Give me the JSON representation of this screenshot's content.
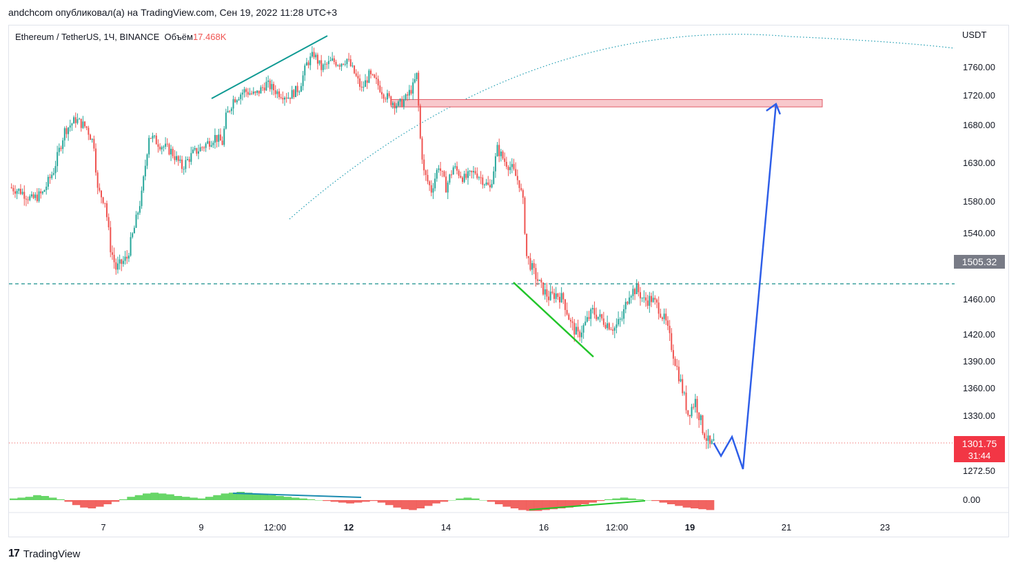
{
  "header": {
    "published_line": "andchcom опубликовал(а) на TradingView.com, Сен 19, 2022 11:28 UTC+3"
  },
  "legend": {
    "symbol": "Ethereum / TetherUS, 1Ч, BINANCE",
    "volume_label": "Объём",
    "volume_value": "17.468K"
  },
  "footer": {
    "brand": "TradingView",
    "logo_glyph": "17"
  },
  "colors": {
    "up": "#26a69a",
    "down": "#ef5350",
    "green_line": "#22c52a",
    "teal_line": "#0f9a93",
    "blue_arrow": "#2e5ee8",
    "zone_fill": "#f8c8cc",
    "zone_stroke": "#e05a66"
  },
  "chart_data": {
    "type": "candlestick",
    "symbol": "ETHUSDT",
    "interval": "1h",
    "quote_currency": "USDT",
    "y_axis": {
      "unit": "USDT",
      "ticks": [
        1760,
        1720,
        1680,
        1630,
        1580,
        1540,
        1460,
        1420,
        1390,
        1360,
        1330,
        1272.5
      ],
      "tick_labels": [
        "1760.00",
        "1720.00",
        "1680.00",
        "1630.00",
        "1580.00",
        "1540.00",
        "1460.00",
        "1420.00",
        "1390.00",
        "1360.00",
        "1330.00",
        "1272.50"
      ]
    },
    "x_axis": {
      "tick_labels": [
        "7",
        "9",
        "12:00",
        "12",
        "14",
        "16",
        "12:00",
        "19",
        "21",
        "23"
      ],
      "bold_labels": [
        "12",
        "19"
      ]
    },
    "last_price": {
      "label": "1301.75",
      "countdown": "31:44",
      "value": 1301.75
    },
    "marked_price": {
      "label": "1505.32",
      "value": 1505.32
    },
    "price_path": [
      [
        0,
        1598
      ],
      [
        6,
        1593
      ],
      [
        12,
        1582
      ],
      [
        18,
        1590
      ],
      [
        24,
        1620
      ],
      [
        30,
        1672
      ],
      [
        36,
        1687
      ],
      [
        42,
        1676
      ],
      [
        46,
        1654
      ],
      [
        48,
        1594
      ],
      [
        52,
        1580
      ],
      [
        55,
        1522
      ],
      [
        58,
        1497
      ],
      [
        64,
        1510
      ],
      [
        68,
        1546
      ],
      [
        72,
        1588
      ],
      [
        76,
        1666
      ],
      [
        82,
        1654
      ],
      [
        88,
        1645
      ],
      [
        94,
        1624
      ],
      [
        100,
        1642
      ],
      [
        106,
        1652
      ],
      [
        112,
        1664
      ],
      [
        116,
        1656
      ],
      [
        118,
        1690
      ],
      [
        122,
        1714
      ],
      [
        128,
        1726
      ],
      [
        134,
        1720
      ],
      [
        140,
        1736
      ],
      [
        146,
        1724
      ],
      [
        152,
        1718
      ],
      [
        158,
        1730
      ],
      [
        162,
        1764
      ],
      [
        166,
        1778
      ],
      [
        170,
        1758
      ],
      [
        176,
        1768
      ],
      [
        180,
        1765
      ],
      [
        184,
        1771
      ],
      [
        188,
        1751
      ],
      [
        192,
        1728
      ],
      [
        196,
        1748
      ],
      [
        200,
        1738
      ],
      [
        204,
        1722
      ],
      [
        208,
        1712
      ],
      [
        212,
        1706
      ],
      [
        216,
        1715
      ],
      [
        220,
        1732
      ],
      [
        222,
        1748
      ],
      [
        224,
        1661
      ],
      [
        226,
        1617
      ],
      [
        230,
        1594
      ],
      [
        234,
        1627
      ],
      [
        238,
        1598
      ],
      [
        242,
        1624
      ],
      [
        248,
        1609
      ],
      [
        254,
        1618
      ],
      [
        258,
        1608
      ],
      [
        262,
        1596
      ],
      [
        266,
        1648
      ],
      [
        270,
        1632
      ],
      [
        274,
        1622
      ],
      [
        278,
        1603
      ],
      [
        280,
        1578
      ],
      [
        282,
        1512
      ],
      [
        286,
        1492
      ],
      [
        290,
        1474
      ],
      [
        294,
        1462
      ],
      [
        298,
        1466
      ],
      [
        302,
        1460
      ],
      [
        306,
        1432
      ],
      [
        310,
        1418
      ],
      [
        314,
        1432
      ],
      [
        318,
        1446
      ],
      [
        322,
        1438
      ],
      [
        326,
        1432
      ],
      [
        330,
        1427
      ],
      [
        334,
        1438
      ],
      [
        338,
        1468
      ],
      [
        342,
        1472
      ],
      [
        346,
        1458
      ],
      [
        350,
        1460
      ],
      [
        354,
        1450
      ],
      [
        358,
        1432
      ],
      [
        362,
        1398
      ],
      [
        366,
        1366
      ],
      [
        370,
        1332
      ],
      [
        374,
        1346
      ],
      [
        378,
        1316
      ],
      [
        382,
        1298
      ],
      [
        384,
        1301.75
      ]
    ],
    "projected_path": [
      [
        384,
        1301.75
      ],
      [
        388,
        1288
      ],
      [
        394,
        1308
      ],
      [
        400,
        1274
      ],
      [
        418,
        1708
      ]
    ],
    "resistance_zone": {
      "from": 1704,
      "to": 1714,
      "x_start": 208,
      "x_end": 430
    },
    "horizontal_levels": [
      {
        "value": 1476,
        "style": "dashed"
      },
      {
        "value": 1301.75,
        "style": "dotted"
      }
    ],
    "oscillator": {
      "zero_label": "0.00",
      "values": [
        2,
        3,
        4,
        6,
        5,
        3,
        1,
        -2,
        -6,
        -9,
        -10,
        -8,
        -5,
        -2,
        1,
        4,
        6,
        8,
        9,
        8,
        7,
        5,
        4,
        3,
        2,
        4,
        6,
        8,
        9,
        10,
        9,
        8,
        7,
        6,
        5,
        4,
        3,
        2,
        1,
        0,
        -1,
        -2,
        -3,
        -4,
        -3,
        -2,
        -1,
        -3,
        -6,
        -9,
        -11,
        -12,
        -10,
        -7,
        -4,
        -2,
        0,
        2,
        3,
        2,
        0,
        -2,
        -5,
        -8,
        -10,
        -12,
        -13,
        -13,
        -12,
        -11,
        -10,
        -9,
        -7,
        -5,
        -3,
        -1,
        1,
        2,
        3,
        2,
        1,
        0,
        -1,
        -3,
        -5,
        -7,
        -9,
        -10,
        -11,
        -12
      ]
    }
  }
}
